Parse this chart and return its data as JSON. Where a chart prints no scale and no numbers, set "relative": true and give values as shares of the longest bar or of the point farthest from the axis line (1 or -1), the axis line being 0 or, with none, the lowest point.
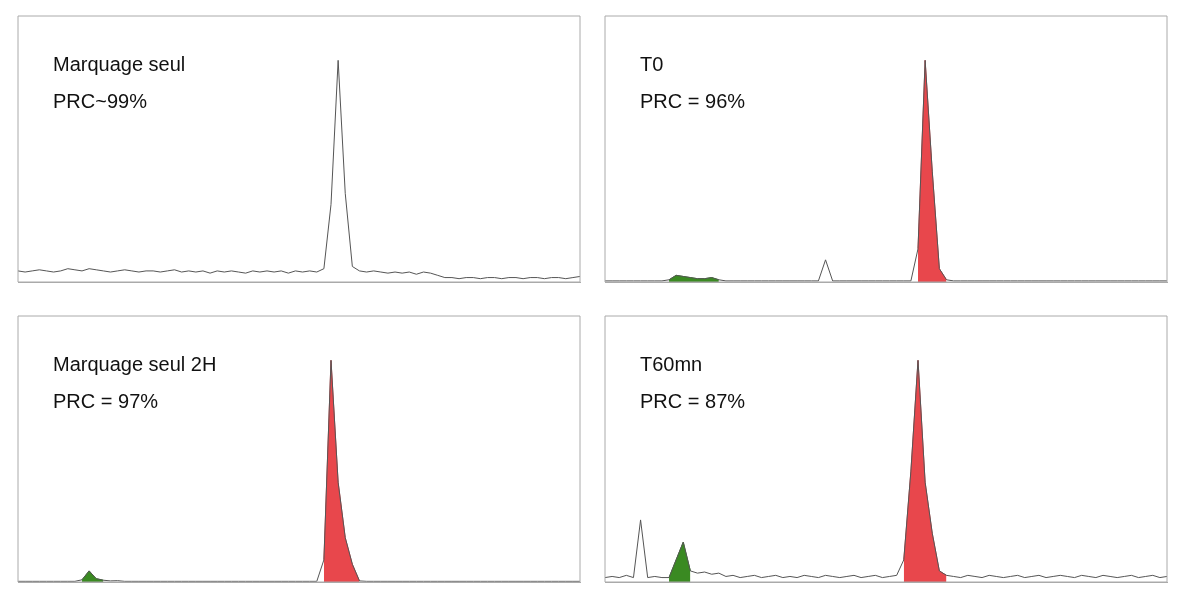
{
  "chart_data": [
    {
      "type": "line",
      "title": "Marquage seul",
      "subtitle": "PRC~99%",
      "relative": true,
      "categories": [
        null,
        null,
        null,
        null,
        null,
        null,
        null,
        null,
        null,
        null,
        null,
        null,
        null,
        null,
        null,
        null,
        null,
        null,
        null,
        null,
        null,
        null,
        null,
        null,
        null,
        null,
        null,
        null,
        null,
        null,
        null,
        null,
        null,
        null,
        null,
        null,
        null,
        null,
        null,
        null,
        null,
        null,
        null,
        null,
        null,
        null,
        null,
        null,
        null,
        null,
        null,
        null,
        null,
        null,
        null,
        null,
        null,
        null,
        null,
        null,
        null,
        null,
        null,
        null,
        null,
        null,
        null,
        null,
        null,
        null,
        null,
        null,
        null,
        null,
        null,
        null,
        null,
        null,
        null,
        null
      ],
      "series": [
        {
          "type": "line",
          "color": "#555555",
          "values": [
            0.05,
            0.045,
            0.05,
            0.055,
            0.05,
            0.045,
            0.05,
            0.06,
            0.055,
            0.05,
            0.06,
            0.055,
            0.05,
            0.045,
            0.05,
            0.055,
            0.05,
            0.045,
            0.05,
            0.05,
            0.045,
            0.05,
            0.055,
            0.045,
            0.05,
            0.045,
            0.05,
            0.04,
            0.05,
            0.045,
            0.05,
            0.045,
            0.04,
            0.05,
            0.045,
            0.05,
            0.045,
            0.05,
            0.04,
            0.05,
            0.045,
            0.05,
            0.045,
            0.06,
            0.35,
            1,
            0.4,
            0.07,
            0.05,
            0.045,
            0.05,
            0.045,
            0.04,
            0.045,
            0.04,
            0.045,
            0.035,
            0.045,
            0.04,
            0.03,
            0.02,
            0.02,
            0.015,
            0.02,
            0.02,
            0.015,
            0.02,
            0.02,
            0.015,
            0.02,
            0.02,
            0.015,
            0.02,
            0.02,
            0.015,
            0.02,
            0.02,
            0.015,
            0.02,
            0.025
          ]
        }
      ]
    },
    {
      "type": "line",
      "title": "T0",
      "subtitle": "PRC = 96%",
      "relative": true,
      "categories": [
        null,
        null,
        null,
        null,
        null,
        null,
        null,
        null,
        null,
        null,
        null,
        null,
        null,
        null,
        null,
        null,
        null,
        null,
        null,
        null,
        null,
        null,
        null,
        null,
        null,
        null,
        null,
        null,
        null,
        null,
        null,
        null,
        null,
        null,
        null,
        null,
        null,
        null,
        null,
        null,
        null,
        null,
        null,
        null,
        null,
        null,
        null,
        null,
        null,
        null,
        null,
        null,
        null,
        null,
        null,
        null,
        null,
        null,
        null,
        null,
        null,
        null,
        null,
        null,
        null,
        null,
        null,
        null,
        null,
        null,
        null,
        null,
        null,
        null,
        null,
        null,
        null,
        null,
        null,
        null
      ],
      "series": [
        {
          "type": "line",
          "color": "#555555",
          "values": [
            0.005,
            0.005,
            0.005,
            0.005,
            0.005,
            0.005,
            0.005,
            0.005,
            0.005,
            0.01,
            0.03,
            0.025,
            0.02,
            0.015,
            0.015,
            0.02,
            0.01,
            0.005,
            0.005,
            0.005,
            0.005,
            0.005,
            0.005,
            0.005,
            0.005,
            0.005,
            0.005,
            0.005,
            0.005,
            0.005,
            0.005,
            0.1,
            0.005,
            0.005,
            0.005,
            0.005,
            0.005,
            0.005,
            0.005,
            0.005,
            0.005,
            0.005,
            0.005,
            0.005,
            0.15,
            1,
            0.5,
            0.06,
            0.01,
            0.005,
            0.005,
            0.005,
            0.005,
            0.005,
            0.005,
            0.005,
            0.005,
            0.005,
            0.005,
            0.005,
            0.005,
            0.005,
            0.005,
            0.005,
            0.005,
            0.005,
            0.005,
            0.005,
            0.005,
            0.005,
            0.005,
            0.005,
            0.005,
            0.005,
            0.005,
            0.005,
            0.005,
            0.005,
            0.005,
            0.005
          ]
        },
        {
          "type": "area",
          "color": "#3a8a22",
          "values": [
            null,
            null,
            null,
            null,
            null,
            null,
            null,
            null,
            null,
            0.01,
            0.03,
            0.025,
            0.02,
            0.015,
            0.015,
            0.02,
            0.01,
            null,
            null,
            null,
            null,
            null,
            null,
            null,
            null,
            null,
            null,
            null,
            null,
            null,
            null,
            null,
            null,
            null,
            null,
            null,
            null,
            null,
            null,
            null,
            null,
            null,
            null,
            null,
            null,
            null,
            null,
            null,
            null,
            null,
            null,
            null,
            null,
            null,
            null,
            null,
            null,
            null,
            null,
            null,
            null,
            null,
            null,
            null,
            null,
            null,
            null,
            null,
            null,
            null,
            null,
            null,
            null,
            null,
            null,
            null,
            null,
            null,
            null,
            null
          ]
        },
        {
          "type": "area",
          "color": "#e8474c",
          "values": [
            null,
            null,
            null,
            null,
            null,
            null,
            null,
            null,
            null,
            null,
            null,
            null,
            null,
            null,
            null,
            null,
            null,
            null,
            null,
            null,
            null,
            null,
            null,
            null,
            null,
            null,
            null,
            null,
            null,
            null,
            null,
            null,
            null,
            null,
            null,
            null,
            null,
            null,
            null,
            null,
            null,
            null,
            null,
            null,
            0.15,
            1,
            0.5,
            0.06,
            0.01,
            null,
            null,
            null,
            null,
            null,
            null,
            null,
            null,
            null,
            null,
            null,
            null,
            null,
            null,
            null,
            null,
            null,
            null,
            null,
            null,
            null,
            null,
            null,
            null,
            null,
            null,
            null,
            null,
            null,
            null,
            null
          ]
        }
      ]
    },
    {
      "type": "line",
      "title": "Marquage seul 2H",
      "subtitle": "PRC = 97%",
      "relative": true,
      "categories": [
        null,
        null,
        null,
        null,
        null,
        null,
        null,
        null,
        null,
        null,
        null,
        null,
        null,
        null,
        null,
        null,
        null,
        null,
        null,
        null,
        null,
        null,
        null,
        null,
        null,
        null,
        null,
        null,
        null,
        null,
        null,
        null,
        null,
        null,
        null,
        null,
        null,
        null,
        null,
        null,
        null,
        null,
        null,
        null,
        null,
        null,
        null,
        null,
        null,
        null,
        null,
        null,
        null,
        null,
        null,
        null,
        null,
        null,
        null,
        null,
        null,
        null,
        null,
        null,
        null,
        null,
        null,
        null,
        null,
        null,
        null,
        null,
        null,
        null,
        null,
        null,
        null,
        null,
        null,
        null
      ],
      "series": [
        {
          "type": "line",
          "color": "#555555",
          "values": [
            0.003,
            0.003,
            0.003,
            0.003,
            0.003,
            0.003,
            0.003,
            0.003,
            0.003,
            0.01,
            0.05,
            0.015,
            0.008,
            0.005,
            0.006,
            0.003,
            0.003,
            0.003,
            0.003,
            0.003,
            0.003,
            0.003,
            0.003,
            0.003,
            0.003,
            0.003,
            0.003,
            0.003,
            0.003,
            0.003,
            0.003,
            0.003,
            0.003,
            0.003,
            0.003,
            0.003,
            0.003,
            0.003,
            0.003,
            0.003,
            0.003,
            0.003,
            0.003,
            0.1,
            1,
            0.45,
            0.2,
            0.08,
            0.005,
            0.003,
            0.003,
            0.003,
            0.003,
            0.003,
            0.003,
            0.003,
            0.003,
            0.003,
            0.003,
            0.003,
            0.003,
            0.003,
            0.003,
            0.003,
            0.003,
            0.003,
            0.003,
            0.003,
            0.003,
            0.003,
            0.003,
            0.003,
            0.003,
            0.003,
            0.003,
            0.003,
            0.003,
            0.003,
            0.003,
            0.003
          ]
        },
        {
          "type": "area",
          "color": "#3a8a22",
          "values": [
            null,
            null,
            null,
            null,
            null,
            null,
            null,
            null,
            null,
            0.01,
            0.05,
            0.015,
            0.008,
            null,
            null,
            null,
            null,
            null,
            null,
            null,
            null,
            null,
            null,
            null,
            null,
            null,
            null,
            null,
            null,
            null,
            null,
            null,
            null,
            null,
            null,
            null,
            null,
            null,
            null,
            null,
            null,
            null,
            null,
            null,
            null,
            null,
            null,
            null,
            null,
            null,
            null,
            null,
            null,
            null,
            null,
            null,
            null,
            null,
            null,
            null,
            null,
            null,
            null,
            null,
            null,
            null,
            null,
            null,
            null,
            null,
            null,
            null,
            null,
            null,
            null,
            null,
            null,
            null,
            null,
            null
          ]
        },
        {
          "type": "area",
          "color": "#e8474c",
          "values": [
            null,
            null,
            null,
            null,
            null,
            null,
            null,
            null,
            null,
            null,
            null,
            null,
            null,
            null,
            null,
            null,
            null,
            null,
            null,
            null,
            null,
            null,
            null,
            null,
            null,
            null,
            null,
            null,
            null,
            null,
            null,
            null,
            null,
            null,
            null,
            null,
            null,
            null,
            null,
            null,
            null,
            null,
            null,
            0.1,
            1,
            0.45,
            0.2,
            0.08,
            0.005,
            null,
            null,
            null,
            null,
            null,
            null,
            null,
            null,
            null,
            null,
            null,
            null,
            null,
            null,
            null,
            null,
            null,
            null,
            null,
            null,
            null,
            null,
            null,
            null,
            null,
            null,
            null,
            null,
            null,
            null,
            null
          ]
        }
      ]
    },
    {
      "type": "line",
      "title": "T60mn",
      "subtitle": "PRC = 87%",
      "relative": true,
      "categories": [
        null,
        null,
        null,
        null,
        null,
        null,
        null,
        null,
        null,
        null,
        null,
        null,
        null,
        null,
        null,
        null,
        null,
        null,
        null,
        null,
        null,
        null,
        null,
        null,
        null,
        null,
        null,
        null,
        null,
        null,
        null,
        null,
        null,
        null,
        null,
        null,
        null,
        null,
        null,
        null,
        null,
        null,
        null,
        null,
        null,
        null,
        null,
        null,
        null,
        null,
        null,
        null,
        null,
        null,
        null,
        null,
        null,
        null,
        null,
        null,
        null,
        null,
        null,
        null,
        null,
        null,
        null,
        null,
        null,
        null,
        null,
        null,
        null,
        null,
        null,
        null,
        null,
        null,
        null,
        null
      ],
      "series": [
        {
          "type": "line",
          "color": "#555555",
          "values": [
            0.02,
            0.025,
            0.02,
            0.03,
            0.02,
            0.28,
            0.02,
            0.025,
            0.02,
            0.02,
            0.1,
            0.18,
            0.05,
            0.04,
            0.045,
            0.035,
            0.04,
            0.025,
            0.03,
            0.02,
            0.025,
            0.03,
            0.02,
            0.025,
            0.03,
            0.02,
            0.025,
            0.02,
            0.03,
            0.025,
            0.02,
            0.03,
            0.025,
            0.02,
            0.025,
            0.03,
            0.02,
            0.025,
            0.03,
            0.02,
            0.025,
            0.03,
            0.1,
            0.5,
            1,
            0.45,
            0.22,
            0.05,
            0.03,
            0.025,
            0.02,
            0.03,
            0.025,
            0.02,
            0.03,
            0.025,
            0.02,
            0.025,
            0.03,
            0.02,
            0.025,
            0.03,
            0.02,
            0.025,
            0.03,
            0.025,
            0.02,
            0.03,
            0.025,
            0.02,
            0.03,
            0.025,
            0.02,
            0.025,
            0.03,
            0.02,
            0.025,
            0.03,
            0.02,
            0.025
          ]
        },
        {
          "type": "area",
          "color": "#3a8a22",
          "values": [
            null,
            null,
            null,
            null,
            null,
            null,
            null,
            null,
            null,
            0.02,
            0.1,
            0.18,
            0.05,
            null,
            null,
            null,
            null,
            null,
            null,
            null,
            null,
            null,
            null,
            null,
            null,
            null,
            null,
            null,
            null,
            null,
            null,
            null,
            null,
            null,
            null,
            null,
            null,
            null,
            null,
            null,
            null,
            null,
            null,
            null,
            null,
            null,
            null,
            null,
            null,
            null,
            null,
            null,
            null,
            null,
            null,
            null,
            null,
            null,
            null,
            null,
            null,
            null,
            null,
            null,
            null,
            null,
            null,
            null,
            null,
            null,
            null,
            null,
            null,
            null,
            null,
            null,
            null,
            null,
            null,
            null
          ]
        },
        {
          "type": "area",
          "color": "#e8474c",
          "values": [
            null,
            null,
            null,
            null,
            null,
            null,
            null,
            null,
            null,
            null,
            null,
            null,
            null,
            null,
            null,
            null,
            null,
            null,
            null,
            null,
            null,
            null,
            null,
            null,
            null,
            null,
            null,
            null,
            null,
            null,
            null,
            null,
            null,
            null,
            null,
            null,
            null,
            null,
            null,
            null,
            null,
            null,
            0.1,
            0.5,
            1,
            0.45,
            0.22,
            0.05,
            0.03,
            null,
            null,
            null,
            null,
            null,
            null,
            null,
            null,
            null,
            null,
            null,
            null,
            null,
            null,
            null,
            null,
            null,
            null,
            null,
            null,
            null,
            null,
            null,
            null,
            null,
            null,
            null,
            null,
            null,
            null,
            null
          ]
        }
      ]
    }
  ]
}
